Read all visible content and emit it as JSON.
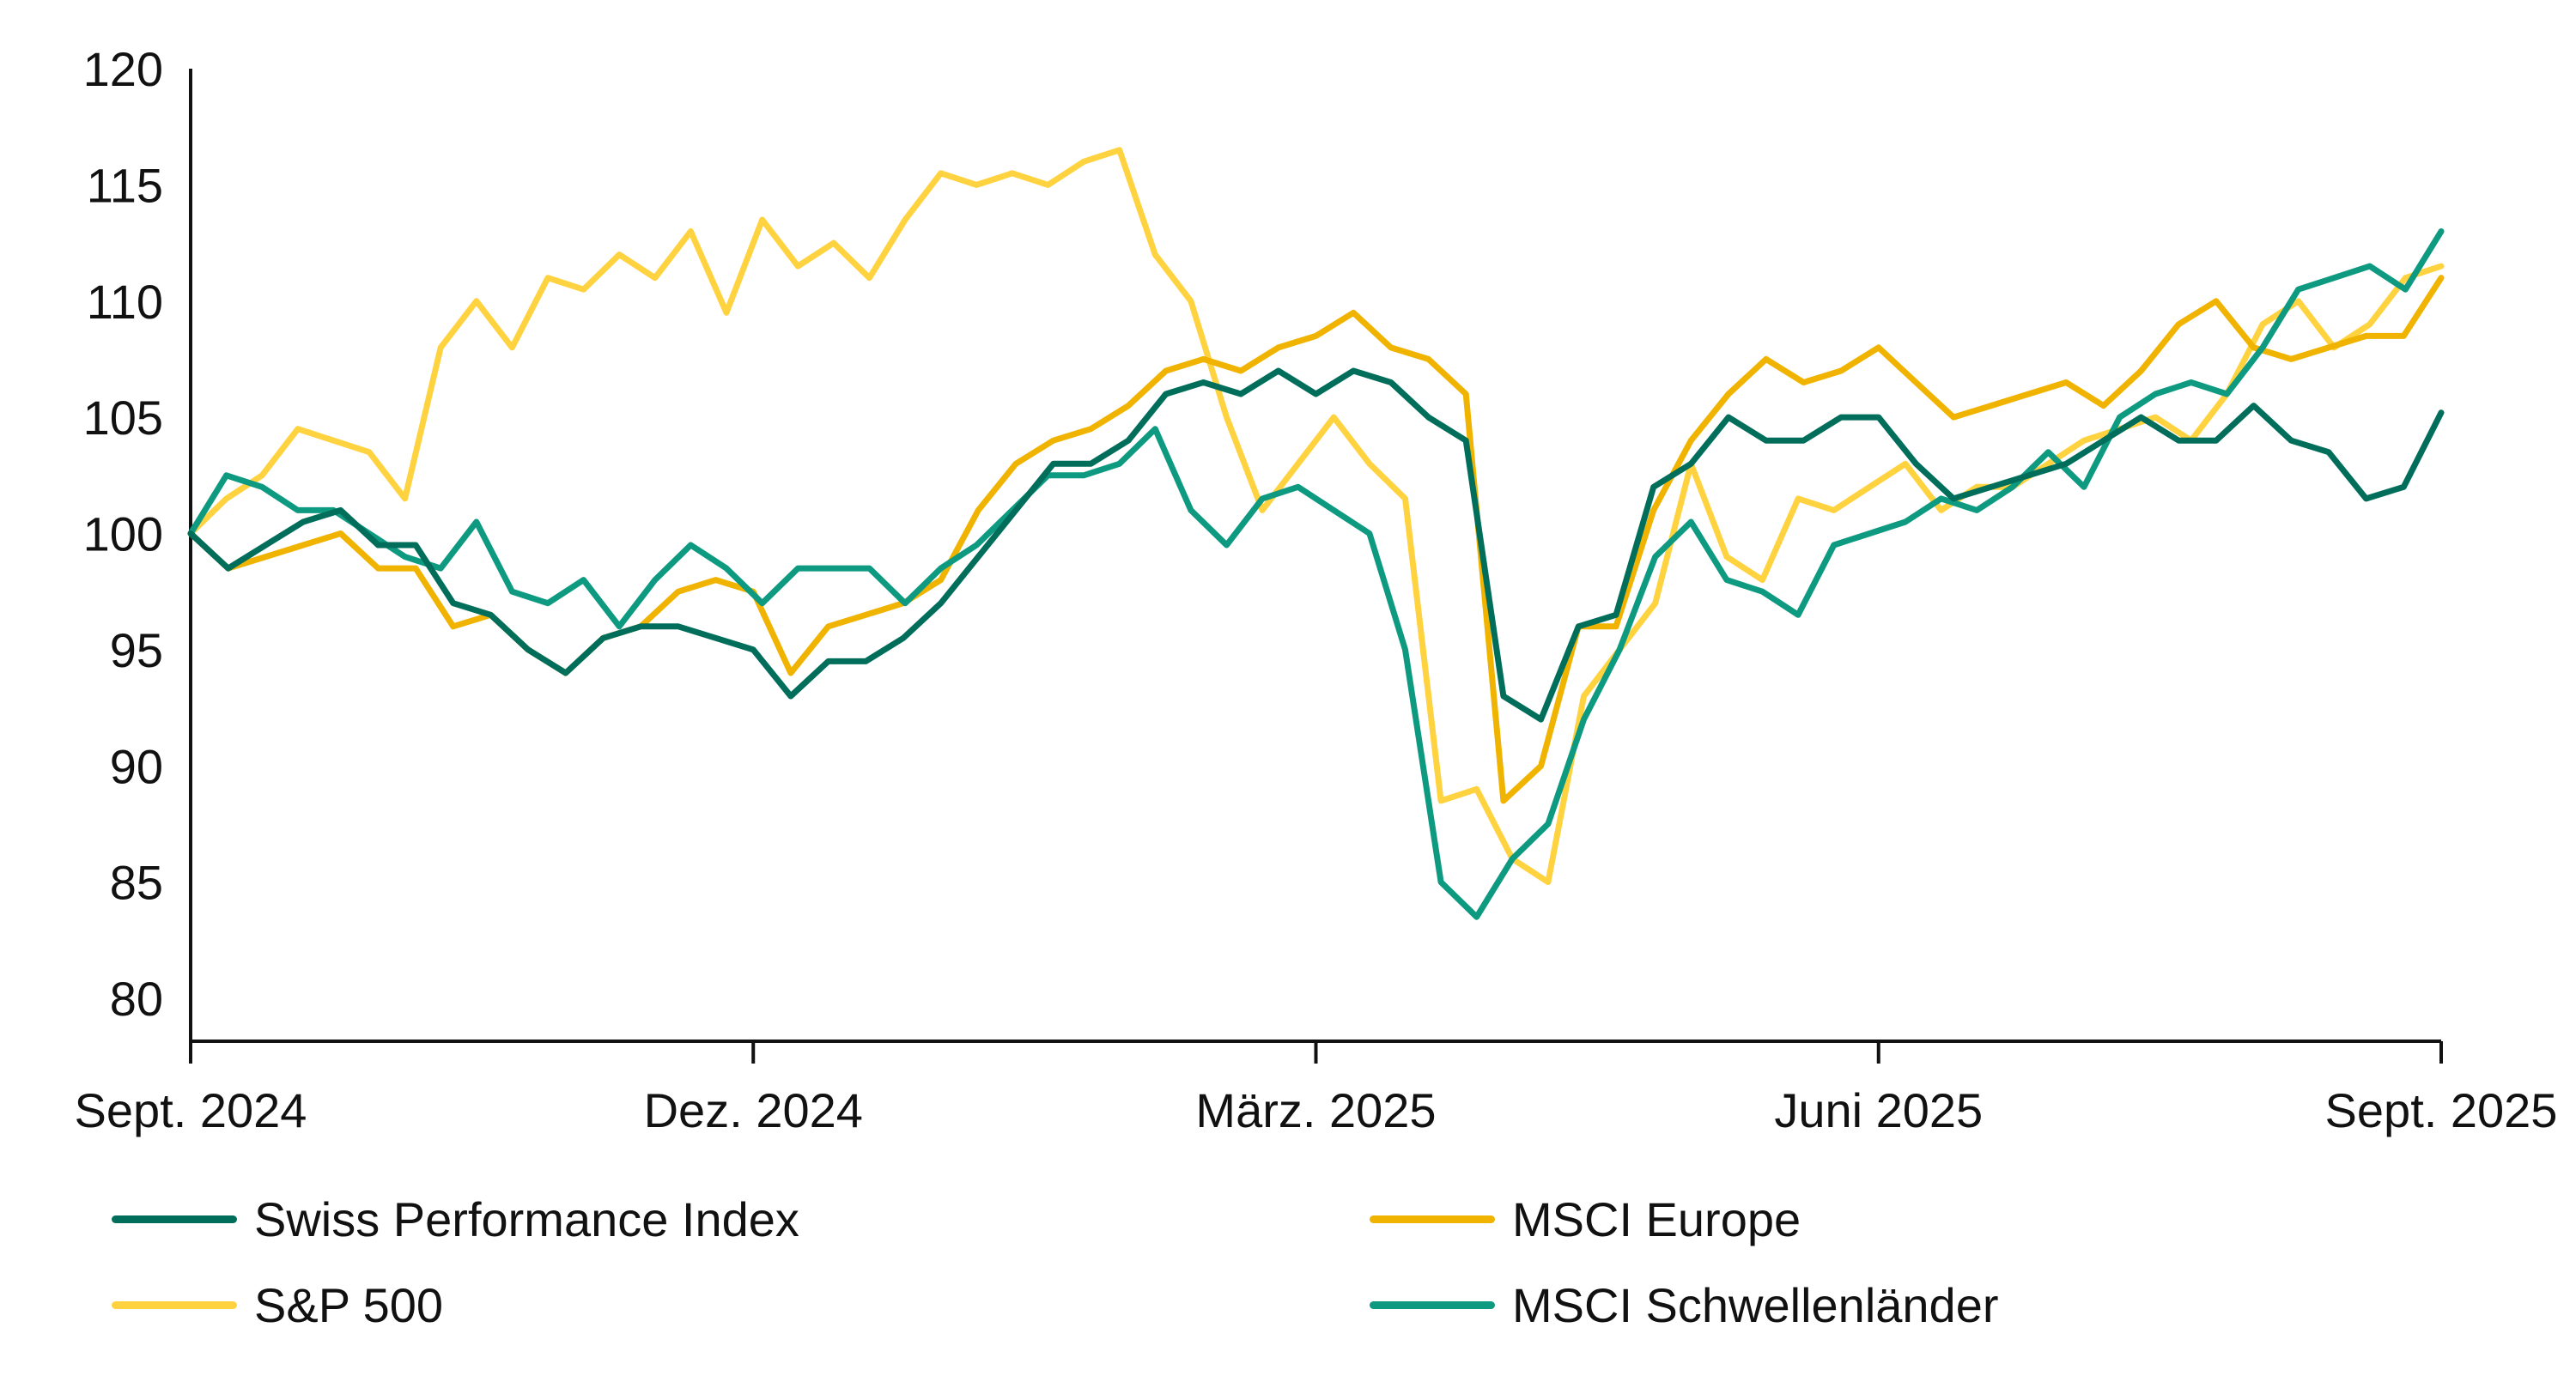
{
  "chart_data": {
    "type": "line",
    "title": "",
    "xlabel": "",
    "ylabel": "",
    "ylim": [
      80,
      120
    ],
    "yticks": [
      80,
      85,
      90,
      95,
      100,
      105,
      110,
      115,
      120
    ],
    "ytick_labels": [
      "80",
      "85",
      "90",
      "95",
      "100",
      "105",
      "110",
      "115",
      "120"
    ],
    "xticks": [
      {
        "index": 0,
        "label": "Sept. 2024"
      },
      {
        "index": 13,
        "label": "Dez. 2024"
      },
      {
        "index": 26,
        "label": "März. 2025"
      },
      {
        "index": 39,
        "label": "Juni 2025"
      },
      {
        "index": 52,
        "label": "Sept. 2025"
      }
    ],
    "x_frequency": "weekly (approximate)",
    "grid": false,
    "legend_position": "bottom",
    "series": [
      {
        "name": "Swiss Performance Index",
        "color": "#006E5A",
        "values": [
          100,
          98.5,
          99.5,
          100.5,
          101,
          99.5,
          99.5,
          97,
          96.5,
          95,
          94,
          95.5,
          96,
          96,
          95.5,
          95,
          93,
          94.5,
          94.5,
          95.5,
          97,
          99,
          101,
          103,
          103,
          104,
          106,
          106.5,
          106,
          107,
          106,
          107,
          106.5,
          105,
          104,
          93,
          92,
          96,
          96.5,
          102,
          103,
          105,
          104,
          104,
          105,
          105,
          103,
          101.5,
          102,
          102.5,
          103,
          104,
          105,
          104,
          104,
          105.5,
          104,
          103.5,
          101.5,
          102,
          105.2
        ]
      },
      {
        "name": "MSCI Europe",
        "color": "#F0B400",
        "values": [
          100,
          98.5,
          99,
          99.5,
          100,
          98.5,
          98.5,
          96,
          96.5,
          95,
          94,
          95.5,
          96,
          97.5,
          98,
          97.5,
          94,
          96,
          96.5,
          97,
          98,
          101,
          103,
          104,
          104.5,
          105.5,
          107,
          107.5,
          107,
          108,
          108.5,
          109.5,
          108,
          107.5,
          106,
          88.5,
          90,
          96,
          96,
          101,
          104,
          106,
          107.5,
          106.5,
          107,
          108,
          106.5,
          105,
          105.5,
          106,
          106.5,
          105.5,
          107,
          109,
          110,
          108,
          107.5,
          108,
          108.5,
          108.5,
          111
        ]
      },
      {
        "name": "S&P 500",
        "color": "#FFD23F",
        "values": [
          100,
          101.5,
          102.5,
          104.5,
          104,
          103.5,
          101.5,
          108,
          110,
          108,
          111,
          110.5,
          112,
          111,
          113,
          109.5,
          113.5,
          111.5,
          112.5,
          111,
          113.5,
          115.5,
          115,
          115.5,
          115,
          116,
          116.5,
          112,
          110,
          105,
          101,
          103,
          105,
          103,
          101.5,
          88.5,
          89,
          86,
          85,
          93,
          95,
          97,
          103,
          99,
          98,
          101.5,
          101,
          102,
          103,
          101,
          102,
          102,
          103,
          104,
          104.5,
          105,
          104,
          106,
          109,
          110,
          108,
          109,
          111,
          111.5
        ]
      },
      {
        "name": "MSCI Schwellenländer",
        "color": "#0E9A80",
        "values": [
          100,
          102.5,
          102,
          101,
          101,
          100,
          99,
          98.5,
          100.5,
          97.5,
          97,
          98,
          96,
          98,
          99.5,
          98.5,
          97,
          98.5,
          98.5,
          98.5,
          97,
          98.5,
          99.5,
          101,
          102.5,
          102.5,
          103,
          104.5,
          101,
          99.5,
          101.5,
          102,
          101,
          100,
          95,
          85,
          83.5,
          86,
          87.5,
          92,
          95,
          99,
          100.5,
          98,
          97.5,
          96.5,
          99.5,
          100,
          100.5,
          101.5,
          101,
          102,
          103.5,
          102,
          105,
          106,
          106.5,
          106,
          108,
          110.5,
          111,
          111.5,
          110.5,
          113
        ]
      }
    ]
  }
}
